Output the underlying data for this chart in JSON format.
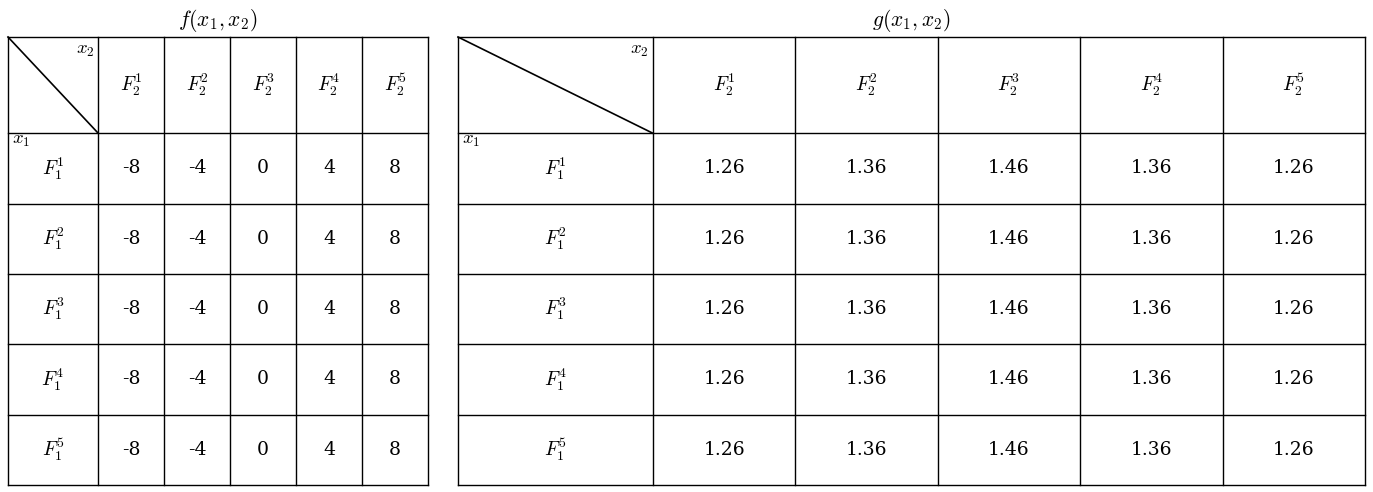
{
  "f_title": "$f(x_1,x_2)$",
  "g_title": "$g(x_1,x_2)$",
  "row_labels": [
    "$F_1^1$",
    "$F_1^2$",
    "$F_1^3$",
    "$F_1^4$",
    "$F_1^5$"
  ],
  "col_labels": [
    "$F_2^1$",
    "$F_2^2$",
    "$F_2^3$",
    "$F_2^4$",
    "$F_2^5$"
  ],
  "f_data": [
    [
      "-8",
      "-4",
      "0",
      "4",
      "8"
    ],
    [
      "-8",
      "-4",
      "0",
      "4",
      "8"
    ],
    [
      "-8",
      "-4",
      "0",
      "4",
      "8"
    ],
    [
      "-8",
      "-4",
      "0",
      "4",
      "8"
    ],
    [
      "-8",
      "-4",
      "0",
      "4",
      "8"
    ]
  ],
  "g_data": [
    [
      "1.26",
      "1.36",
      "1.46",
      "1.36",
      "1.26"
    ],
    [
      "1.26",
      "1.36",
      "1.46",
      "1.36",
      "1.26"
    ],
    [
      "1.26",
      "1.36",
      "1.46",
      "1.36",
      "1.26"
    ],
    [
      "1.26",
      "1.36",
      "1.46",
      "1.36",
      "1.26"
    ],
    [
      "1.26",
      "1.36",
      "1.46",
      "1.36",
      "1.26"
    ]
  ],
  "x1_label": "$x_1$",
  "x2_label": "$x_2$",
  "bg_color": "#ffffff",
  "line_color": "#000000",
  "text_color": "#000000",
  "font_size": 13.5,
  "title_font_size": 15.5,
  "header_font_size": 14.0
}
